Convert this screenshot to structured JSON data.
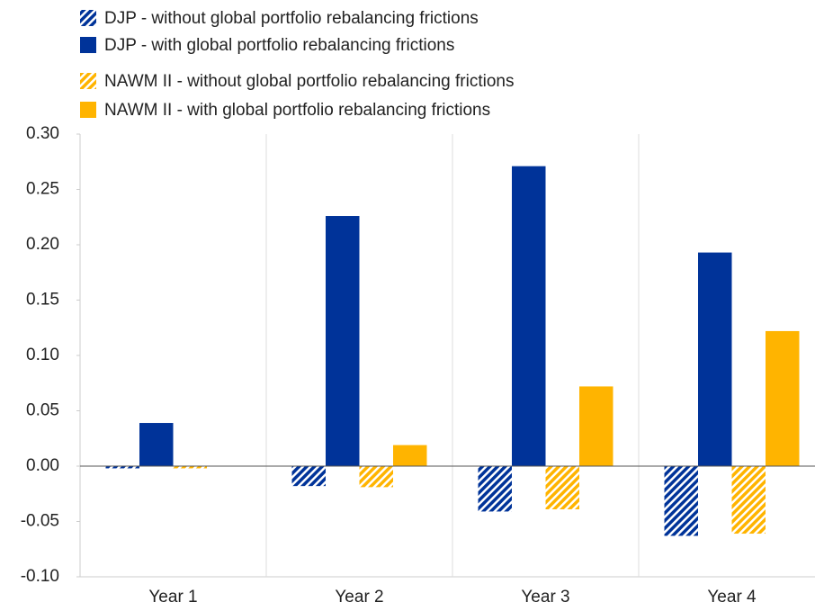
{
  "chart_data": {
    "type": "bar",
    "categories": [
      "Year 1",
      "Year 2",
      "Year 3",
      "Year 4"
    ],
    "series": [
      {
        "name": "DJP - without global portfolio rebalancing frictions",
        "color": "#003399",
        "hatch": true,
        "values": [
          -0.002,
          -0.018,
          -0.041,
          -0.063
        ]
      },
      {
        "name": "DJP - with global portfolio rebalancing frictions",
        "color": "#003399",
        "hatch": false,
        "values": [
          0.039,
          0.226,
          0.271,
          0.193
        ]
      },
      {
        "name": "NAWM II - without global portfolio rebalancing frictions",
        "color": "#ffb400",
        "hatch": true,
        "values": [
          -0.002,
          -0.019,
          -0.039,
          -0.061
        ]
      },
      {
        "name": "NAWM II - with global portfolio rebalancing frictions",
        "color": "#ffb400",
        "hatch": false,
        "values": [
          0,
          0.019,
          0.072,
          0.122
        ]
      }
    ],
    "ylim": [
      -0.1,
      0.3
    ],
    "yticks": [
      {
        "value": -0.1,
        "label": "-0.10"
      },
      {
        "value": -0.05,
        "label": "-0.05"
      },
      {
        "value": 0,
        "label": "0.00"
      },
      {
        "value": 0.05,
        "label": "0.05"
      },
      {
        "value": 0.1,
        "label": "0.10"
      },
      {
        "value": 0.15,
        "label": "0.15"
      },
      {
        "value": 0.2,
        "label": "0.20"
      },
      {
        "value": 0.25,
        "label": "0.25"
      },
      {
        "value": 0.3,
        "label": "0.30"
      }
    ]
  }
}
